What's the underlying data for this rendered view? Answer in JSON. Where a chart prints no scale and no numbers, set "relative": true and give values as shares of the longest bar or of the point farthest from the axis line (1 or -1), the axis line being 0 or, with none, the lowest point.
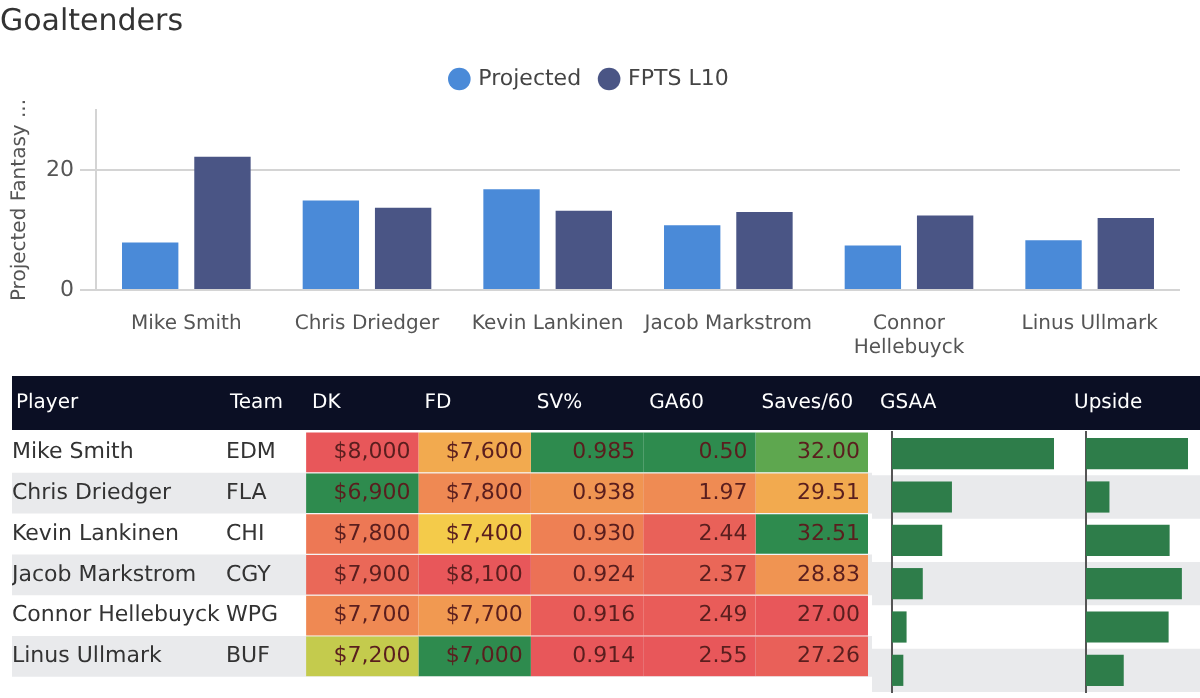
{
  "chart_data": [
    {
      "type": "bar",
      "title": "Goaltenders",
      "ylabel": "Projected Fantasy ...",
      "categories": [
        "Mike Smith",
        "Chris Driedger",
        "Kevin Lankinen",
        "Jacob Markstrom",
        "Connor Hellebuyck",
        "Linus Ullmark"
      ],
      "series": [
        {
          "name": "Projected",
          "color": "#4a8ad8",
          "values": [
            7.9,
            14.9,
            16.8,
            10.8,
            7.4,
            8.3
          ]
        },
        {
          "name": "FPTS L10",
          "color": "#4a5585",
          "values": [
            22.2,
            13.7,
            13.2,
            13.0,
            12.4,
            12.0
          ]
        }
      ],
      "ylim": [
        0,
        30
      ],
      "yticks": [
        0,
        20
      ],
      "grid": "y",
      "legend": "top"
    },
    {
      "type": "heatmap",
      "ylabel": "Player",
      "y2label": "Team",
      "categories": [
        "DK",
        "FD",
        "SV%",
        "GA60",
        "Saves/60"
      ],
      "y_categories": [
        "Mike Smith",
        "Chris Driedger",
        "Kevin Lankinen",
        "Jacob Markstrom",
        "Connor Hellebuyck",
        "Linus Ullmark"
      ],
      "y2_categories": [
        "EDM",
        "FLA",
        "CHI",
        "CGY",
        "WPG",
        "BUF"
      ],
      "cells": [
        [
          8000,
          7600,
          0.985,
          0.5,
          32.0
        ],
        [
          6900,
          7800,
          0.938,
          1.97,
          29.51
        ],
        [
          7800,
          7400,
          0.93,
          2.44,
          32.51
        ],
        [
          7900,
          8100,
          0.924,
          2.37,
          28.83
        ],
        [
          7700,
          7700,
          0.916,
          2.49,
          27.0
        ],
        [
          7200,
          7000,
          0.914,
          2.55,
          27.26
        ]
      ],
      "cell_labels": [
        [
          "$8,000",
          "$7,600",
          "0.985",
          "0.50",
          "32.00"
        ],
        [
          "$6,900",
          "$7,800",
          "0.938",
          "1.97",
          "29.51"
        ],
        [
          "$7,800",
          "$7,400",
          "0.930",
          "2.44",
          "32.51"
        ],
        [
          "$7,900",
          "$8,100",
          "0.924",
          "2.37",
          "28.83"
        ],
        [
          "$7,700",
          "$7,700",
          "0.916",
          "2.49",
          "27.00"
        ],
        [
          "$7,200",
          "$7,000",
          "0.914",
          "2.55",
          "27.26"
        ]
      ]
    },
    {
      "type": "bar",
      "orientation": "horizontal",
      "relative": true,
      "title": "GSAA",
      "categories": [
        null,
        null,
        null,
        null,
        null,
        null
      ],
      "values": [
        1,
        0.37,
        0.31,
        0.19,
        0.09,
        0.07
      ],
      "color": "#2e7d4a"
    },
    {
      "type": "bar",
      "orientation": "horizontal",
      "relative": true,
      "title": "Upside",
      "categories": [
        null,
        null,
        null,
        null,
        null,
        null
      ],
      "values": [
        1,
        0.23,
        0.82,
        0.94,
        0.81,
        0.37
      ],
      "color": "#2e7d4a"
    }
  ]
}
